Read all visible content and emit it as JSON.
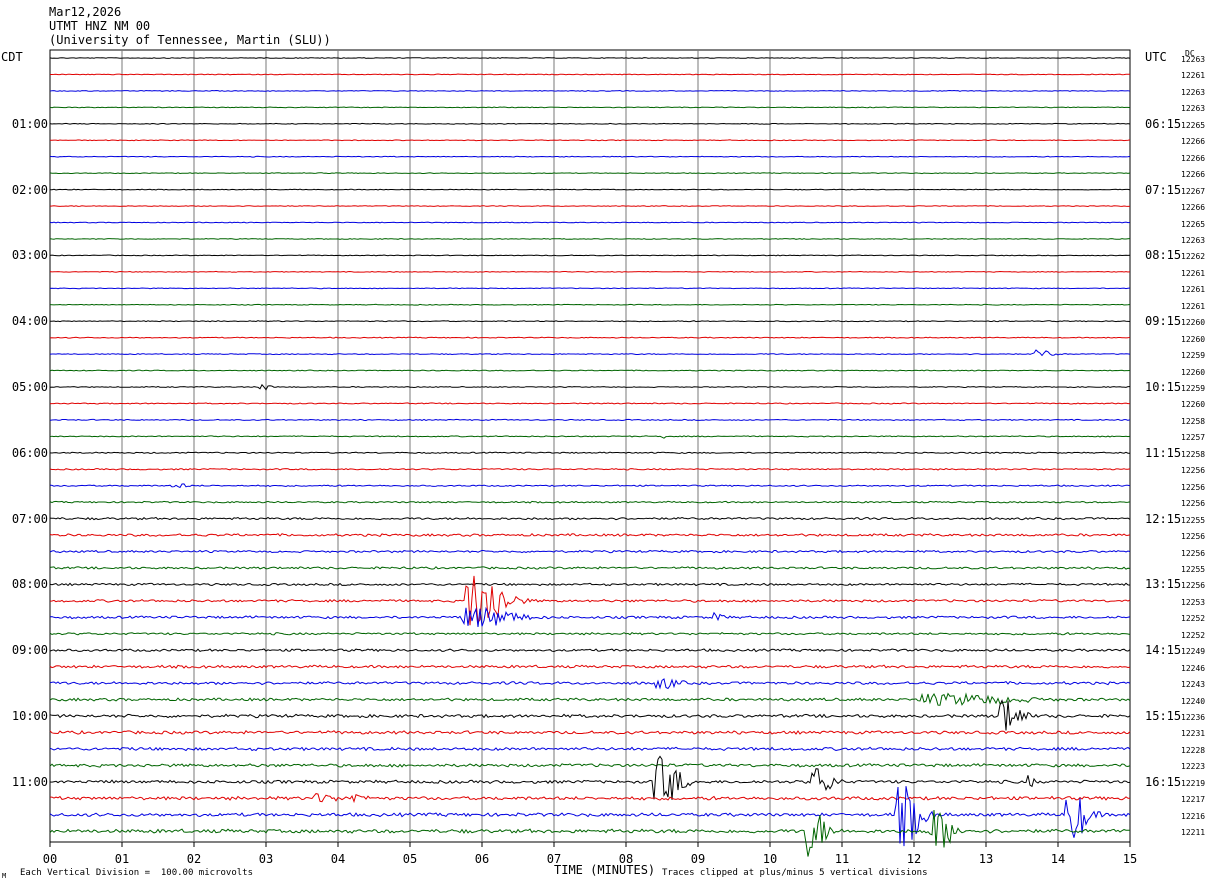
{
  "header": {
    "date": "Mar12,2026",
    "station": "UTMT HNZ NM 00",
    "institution": "(University of Tennessee, Martin (SLU))"
  },
  "left_timezone": "CDT",
  "right_timezone": "UTC",
  "dc_label": "DC",
  "footer": {
    "scale_note": "Each Vertical Division =  100.00 microvolts",
    "clip_note": "Traces clipped at plus/minus 5 vertical divisions",
    "corner_mark": "M"
  },
  "colors": {
    "trace_cycle": [
      "#000000",
      "#e00000",
      "#0000e0",
      "#006400"
    ],
    "grid": "#7a7a7a"
  },
  "chart_data": {
    "type": "line",
    "title": "UTMT HNZ NM 00",
    "xlabel": "TIME (MINUTES)",
    "xlim": [
      0,
      15
    ],
    "x_ticks": [
      "00",
      "01",
      "02",
      "03",
      "04",
      "05",
      "06",
      "07",
      "08",
      "09",
      "10",
      "11",
      "12",
      "13",
      "14",
      "15"
    ],
    "rows": 48,
    "left_hour_labels": [
      "01:00",
      "02:00",
      "03:00",
      "04:00",
      "05:00",
      "06:00",
      "07:00",
      "08:00",
      "09:00",
      "10:00",
      "11:00"
    ],
    "right_hour_labels": [
      "06:15",
      "07:15",
      "08:15",
      "09:15",
      "10:15",
      "11:15",
      "12:15",
      "13:15",
      "14:15",
      "15:15",
      "16:15"
    ],
    "dc_offsets": [
      12263,
      12261,
      12263,
      12263,
      12265,
      12266,
      12266,
      12266,
      12267,
      12266,
      12265,
      12263,
      12262,
      12261,
      12261,
      12261,
      12260,
      12260,
      12259,
      12260,
      12259,
      12260,
      12258,
      12257,
      12258,
      12256,
      12256,
      12256,
      12255,
      12256,
      12256,
      12255,
      12256,
      12253,
      12252,
      12252,
      12249,
      12246,
      12243,
      12240,
      12236,
      12231,
      12228,
      12223,
      12219,
      12217,
      12216,
      12211
    ],
    "noise_level": [
      0.25,
      0.25,
      0.25,
      0.25,
      0.25,
      0.25,
      0.25,
      0.25,
      0.25,
      0.25,
      0.25,
      0.25,
      0.25,
      0.25,
      0.25,
      0.25,
      0.3,
      0.3,
      0.3,
      0.3,
      0.3,
      0.35,
      0.35,
      0.35,
      0.4,
      0.45,
      0.45,
      0.5,
      0.7,
      0.8,
      0.7,
      0.7,
      0.7,
      0.8,
      0.8,
      0.7,
      0.8,
      0.9,
      0.9,
      0.9,
      1.0,
      1.0,
      1.0,
      1.0,
      1.0,
      1.1,
      1.1,
      1.2
    ],
    "events": [
      {
        "row": 18,
        "minute": 13.75,
        "amplitude": 4,
        "duration": 0.3
      },
      {
        "row": 20,
        "minute": 2.95,
        "amplitude": 4,
        "duration": 0.15
      },
      {
        "row": 23,
        "minute": 8.5,
        "amplitude": 3,
        "duration": 0.05
      },
      {
        "row": 26,
        "minute": 1.75,
        "amplitude": 3,
        "duration": 0.2
      },
      {
        "row": 33,
        "minute": 5.95,
        "amplitude": 30,
        "duration": 0.6
      },
      {
        "row": 34,
        "minute": 5.95,
        "amplitude": 10,
        "duration": 0.8
      },
      {
        "row": 34,
        "minute": 9.25,
        "amplitude": 4,
        "duration": 0.15
      },
      {
        "row": 38,
        "minute": 8.5,
        "amplitude": 5,
        "duration": 0.35
      },
      {
        "row": 39,
        "minute": 12.5,
        "amplitude": 5,
        "duration": 1.5
      },
      {
        "row": 40,
        "minute": 13.25,
        "amplitude": 20,
        "duration": 0.35
      },
      {
        "row": 44,
        "minute": 8.5,
        "amplitude": 25,
        "duration": 0.4
      },
      {
        "row": 44,
        "minute": 10.65,
        "amplitude": 14,
        "duration": 0.35
      },
      {
        "row": 44,
        "minute": 13.6,
        "amplitude": 6,
        "duration": 0.1
      },
      {
        "row": 45,
        "minute": 3.75,
        "amplitude": 4,
        "duration": 0.3
      },
      {
        "row": 45,
        "minute": 4.2,
        "amplitude": 5,
        "duration": 0.2
      },
      {
        "row": 46,
        "minute": 11.85,
        "amplitude": 30,
        "duration": 0.4
      },
      {
        "row": 46,
        "minute": 14.2,
        "amplitude": 25,
        "duration": 0.35
      },
      {
        "row": 47,
        "minute": 10.55,
        "amplitude": 25,
        "duration": 0.35
      },
      {
        "row": 47,
        "minute": 12.3,
        "amplitude": 22,
        "duration": 0.35
      }
    ]
  }
}
